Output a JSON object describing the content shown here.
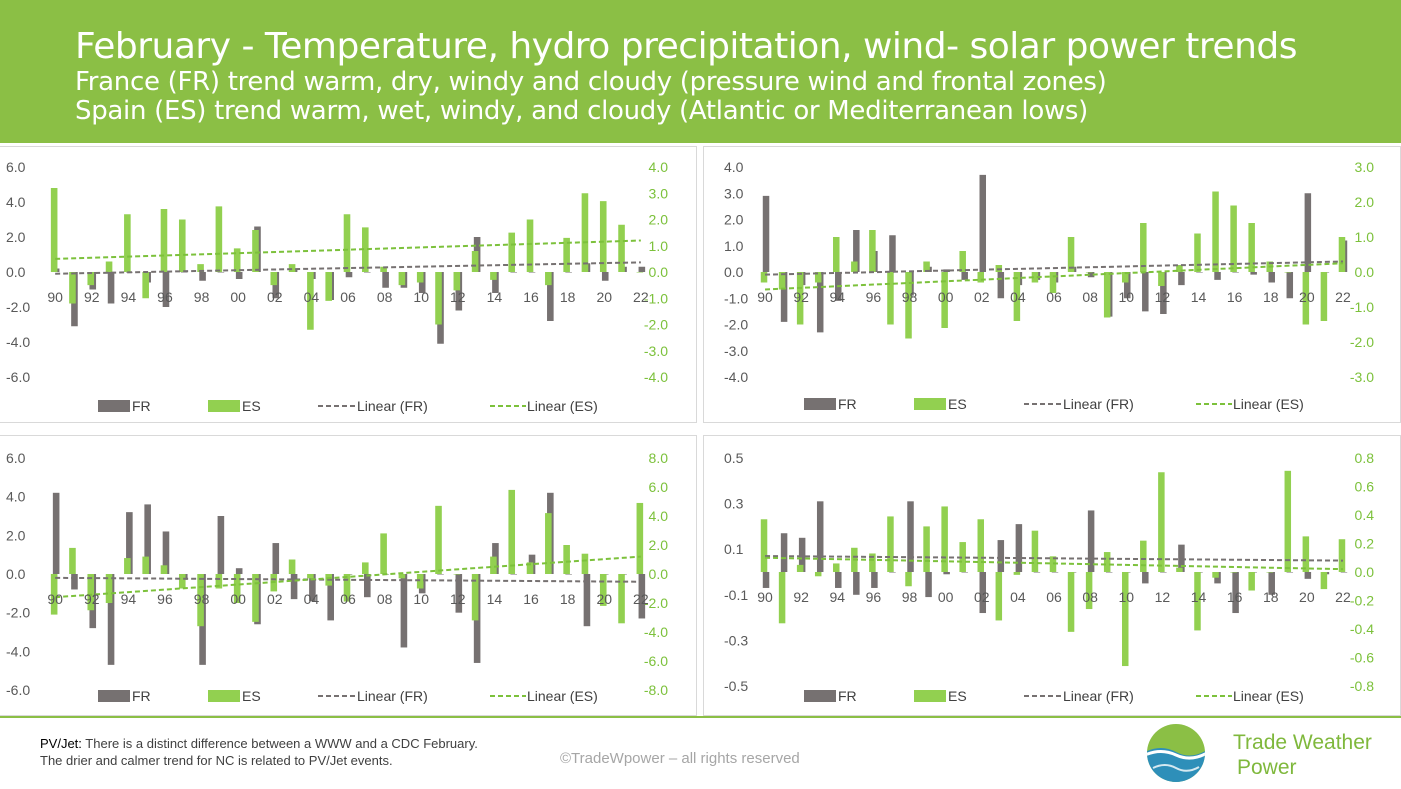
{
  "header": {
    "title": "February - Temperature, hydro precipitation, wind- solar power trends",
    "line2": "France (FR) trend warm, dry, windy and cloudy (pressure wind and frontal zones)",
    "line3": "Spain (ES) trend warm, wet, windy, and cloudy (Atlantic or Mediterranean lows)"
  },
  "footer": {
    "note_label": "PV/Jet:",
    "note_text1": " There is a distinct difference between a WWW and a CDC February.",
    "note_text2": "The drier and calmer trend for NC is related to PV/Jet events.",
    "copyright": "©TradeWpower – all rights reserved",
    "logo_line1": "Trade Weather",
    "logo_line2": "Power"
  },
  "colors": {
    "header": "#8bbf45",
    "fr": "#767171",
    "es": "#92d050",
    "fr_trend": "#767171",
    "es_trend": "#7cc13b",
    "axis_right": "#7cc13b",
    "axis_left": "#595959"
  },
  "legend": [
    "FR",
    "ES",
    "Linear (FR)",
    "Linear (ES)"
  ],
  "chart_data": [
    {
      "type": "bar",
      "x_labels": [
        "90",
        "92",
        "94",
        "96",
        "98",
        "00",
        "02",
        "04",
        "06",
        "08",
        "10",
        "12",
        "14",
        "16",
        "18",
        "20",
        "22"
      ],
      "years": [
        1990,
        1991,
        1992,
        1993,
        1994,
        1995,
        1996,
        1997,
        1998,
        1999,
        2000,
        2001,
        2002,
        2003,
        2004,
        2005,
        2006,
        2007,
        2008,
        2009,
        2010,
        2011,
        2012,
        2013,
        2014,
        2015,
        2016,
        2017,
        2018,
        2019,
        2020,
        2021,
        2022
      ],
      "left_axis": {
        "min": -6,
        "max": 6,
        "ticks": [
          "6.0",
          "4.0",
          "2.0",
          "0.0",
          "-2.0",
          "-4.0",
          "-6.0"
        ]
      },
      "right_axis": {
        "min": -4,
        "max": 4,
        "ticks": [
          "4.0",
          "3.0",
          "2.0",
          "1.0",
          "0.0",
          "-1.0",
          "-2.0",
          "-3.0",
          "-4.0"
        ]
      },
      "series": [
        {
          "name": "FR",
          "axis": "left",
          "values": [
            0.2,
            -3.1,
            -1.0,
            -1.8,
            0.0,
            -0.6,
            -2.0,
            0.0,
            -0.5,
            0.0,
            -0.4,
            2.6,
            -1.5,
            0.2,
            -0.4,
            -1.6,
            -0.3,
            0.0,
            -0.9,
            -0.9,
            -1.2,
            -4.1,
            -2.2,
            2.0,
            -1.2,
            0.0,
            0.0,
            -2.8,
            0.0,
            0.5,
            -0.5,
            0.3,
            0.3
          ]
        },
        {
          "name": "ES",
          "axis": "right",
          "values": [
            3.2,
            -1.2,
            -0.5,
            0.4,
            2.2,
            -1.0,
            2.4,
            2.0,
            0.3,
            2.5,
            0.9,
            1.6,
            -0.5,
            0.3,
            -2.2,
            -1.1,
            2.2,
            1.7,
            0.2,
            -0.5,
            -0.4,
            -2.0,
            -0.7,
            0.8,
            -0.3,
            1.5,
            2.0,
            -0.5,
            1.3,
            3.0,
            2.7,
            1.8,
            0.0
          ]
        }
      ],
      "trend": {
        "fr": [
          -0.1,
          0.55
        ],
        "es": [
          0.5,
          1.2
        ]
      }
    },
    {
      "type": "bar",
      "x_labels": [
        "90",
        "92",
        "94",
        "96",
        "98",
        "00",
        "02",
        "04",
        "06",
        "08",
        "10",
        "12",
        "14",
        "16",
        "18",
        "20",
        "22"
      ],
      "years": [
        1990,
        1991,
        1992,
        1993,
        1994,
        1995,
        1996,
        1997,
        1998,
        1999,
        2000,
        2001,
        2002,
        2003,
        2004,
        2005,
        2006,
        2007,
        2008,
        2009,
        2010,
        2011,
        2012,
        2013,
        2014,
        2015,
        2016,
        2017,
        2018,
        2019,
        2020,
        2021,
        2022
      ],
      "left_axis": {
        "min": -4,
        "max": 4,
        "ticks": [
          "4.0",
          "3.0",
          "2.0",
          "1.0",
          "0.0",
          "-1.0",
          "-2.0",
          "-3.0",
          "-4.0"
        ]
      },
      "right_axis": {
        "min": -3,
        "max": 3,
        "ticks": [
          "3.0",
          "2.0",
          "1.0",
          "0.0",
          "-1.0",
          "-2.0",
          "-3.0"
        ]
      },
      "series": [
        {
          "name": "FR",
          "axis": "left",
          "values": [
            2.9,
            -1.9,
            -0.5,
            -2.3,
            -1.1,
            1.6,
            0.8,
            1.4,
            -0.9,
            0.2,
            0.1,
            -0.3,
            3.7,
            -1.0,
            -0.5,
            -0.3,
            -0.4,
            0.2,
            -0.2,
            -1.7,
            -1.0,
            -1.5,
            -1.6,
            -0.5,
            0.0,
            -0.3,
            0.0,
            -0.1,
            -0.4,
            -1.0,
            3.0,
            0.0,
            1.2
          ]
        },
        {
          "name": "ES",
          "axis": "right",
          "values": [
            -0.3,
            -0.5,
            -1.5,
            -0.3,
            1.0,
            0.3,
            1.2,
            -1.5,
            -1.9,
            0.3,
            -1.6,
            0.6,
            -0.3,
            0.2,
            -1.4,
            -0.3,
            -0.6,
            1.0,
            0.0,
            -1.3,
            -0.3,
            1.4,
            -0.4,
            0.2,
            1.1,
            2.3,
            1.9,
            1.4,
            0.3,
            0.0,
            -1.5,
            -1.4,
            1.0
          ]
        }
      ],
      "trend": {
        "fr": [
          -0.1,
          0.4
        ],
        "es": [
          -0.5,
          0.25
        ]
      }
    },
    {
      "type": "bar",
      "x_labels": [
        "90",
        "92",
        "94",
        "96",
        "98",
        "00",
        "02",
        "04",
        "06",
        "08",
        "10",
        "12",
        "14",
        "16",
        "18",
        "20",
        "22"
      ],
      "years": [
        1990,
        1991,
        1992,
        1993,
        1994,
        1995,
        1996,
        1997,
        1998,
        1999,
        2000,
        2001,
        2002,
        2003,
        2004,
        2005,
        2006,
        2007,
        2008,
        2009,
        2010,
        2011,
        2012,
        2013,
        2014,
        2015,
        2016,
        2017,
        2018,
        2019,
        2020,
        2021,
        2022
      ],
      "left_axis": {
        "min": -6,
        "max": 6,
        "ticks": [
          "6.0",
          "4.0",
          "2.0",
          "0.0",
          "-2.0",
          "-4.0",
          "-6.0"
        ]
      },
      "right_axis": {
        "min": -8,
        "max": 8,
        "ticks": [
          "8.0",
          "6.0",
          "4.0",
          "2.0",
          "0.0",
          "-2.0",
          "-4.0",
          "-6.0",
          "-8.0"
        ]
      },
      "series": [
        {
          "name": "FR",
          "axis": "left",
          "values": [
            4.2,
            -0.8,
            -2.8,
            -4.7,
            3.2,
            3.6,
            2.2,
            -0.3,
            -4.7,
            3.0,
            0.3,
            -2.6,
            1.6,
            -1.3,
            -1.4,
            -2.4,
            0.0,
            -1.2,
            0.0,
            -3.8,
            -1.0,
            0.0,
            -2.0,
            -4.6,
            1.6,
            0.0,
            1.0,
            4.2,
            0.0,
            -2.7,
            0.0,
            0.0,
            -2.3
          ]
        },
        {
          "name": "ES",
          "axis": "right",
          "values": [
            -2.8,
            1.8,
            -2.5,
            -2.0,
            1.1,
            1.2,
            0.6,
            -1.0,
            -3.6,
            -1.0,
            -2.0,
            -3.3,
            -1.2,
            1.0,
            -0.3,
            -0.8,
            -1.9,
            0.8,
            2.8,
            -0.3,
            -1.0,
            4.7,
            0.0,
            -3.2,
            1.2,
            5.8,
            0.8,
            4.2,
            2.0,
            1.4,
            -2.2,
            -3.4,
            4.9
          ]
        }
      ],
      "trend": {
        "fr": [
          -0.2,
          -0.4
        ],
        "es": [
          -1.6,
          1.2
        ]
      }
    },
    {
      "type": "bar",
      "x_labels": [
        "90",
        "92",
        "94",
        "96",
        "98",
        "00",
        "02",
        "04",
        "06",
        "08",
        "10",
        "12",
        "14",
        "16",
        "18",
        "20",
        "22"
      ],
      "years": [
        1990,
        1991,
        1992,
        1993,
        1994,
        1995,
        1996,
        1997,
        1998,
        1999,
        2000,
        2001,
        2002,
        2003,
        2004,
        2005,
        2006,
        2007,
        2008,
        2009,
        2010,
        2011,
        2012,
        2013,
        2014,
        2015,
        2016,
        2017,
        2018,
        2019,
        2020,
        2021,
        2022
      ],
      "left_axis": {
        "min": -0.5,
        "max": 0.5,
        "ticks": [
          "0.5",
          "0.3",
          "0.1",
          "-0.1",
          "-0.3",
          "-0.5"
        ]
      },
      "right_axis": {
        "min": -0.8,
        "max": 0.8,
        "ticks": [
          "0.8",
          "0.6",
          "0.4",
          "0.2",
          "0.0",
          "-0.2",
          "-0.4",
          "-0.6",
          "-0.8"
        ]
      },
      "series": [
        {
          "name": "FR",
          "axis": "left",
          "values": [
            -0.07,
            0.17,
            0.15,
            0.31,
            -0.07,
            -0.1,
            -0.07,
            0.0,
            0.31,
            -0.11,
            -0.01,
            0.0,
            -0.18,
            0.14,
            0.21,
            0.0,
            0.0,
            0.0,
            0.27,
            0.0,
            0.0,
            -0.05,
            0.0,
            0.12,
            0.0,
            -0.05,
            -0.18,
            0.0,
            -0.1,
            0.0,
            -0.03,
            -0.01,
            0.0
          ]
        },
        {
          "name": "ES",
          "axis": "right",
          "values": [
            0.37,
            -0.36,
            0.05,
            -0.03,
            0.06,
            0.17,
            0.13,
            0.39,
            -0.1,
            0.32,
            0.46,
            0.21,
            0.37,
            -0.34,
            -0.02,
            0.29,
            0.11,
            -0.42,
            -0.26,
            0.14,
            -0.66,
            0.22,
            0.7,
            0.03,
            -0.41,
            -0.04,
            0.0,
            -0.13,
            0.0,
            0.71,
            0.25,
            -0.12,
            0.23
          ]
        }
      ],
      "trend": {
        "fr": [
          0.07,
          0.05
        ],
        "es": [
          0.1,
          0.02
        ]
      }
    }
  ]
}
